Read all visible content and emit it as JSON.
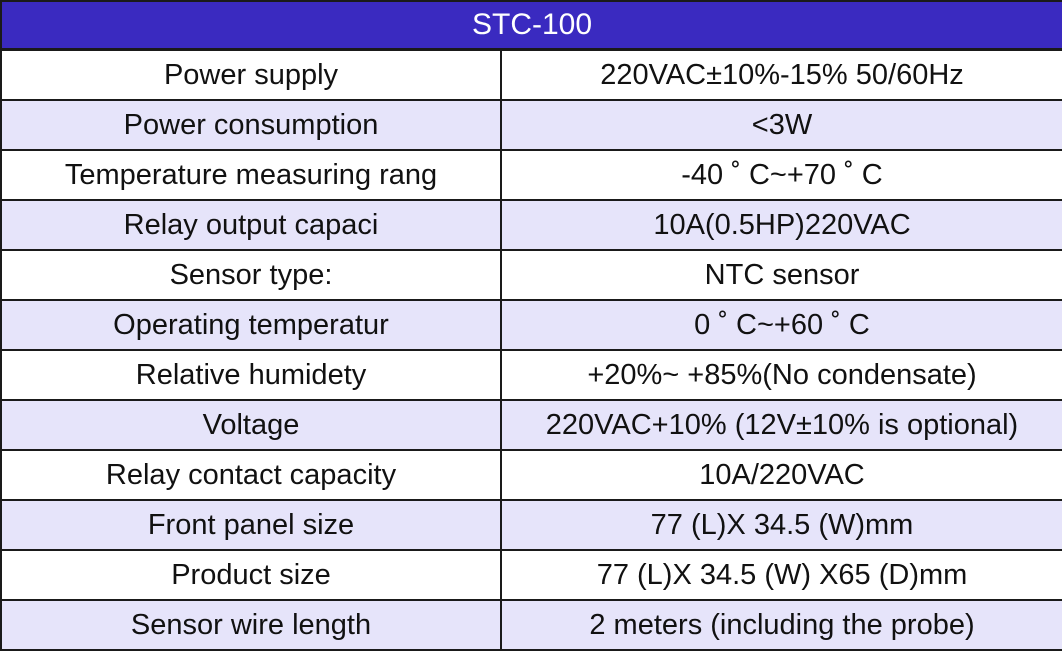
{
  "table": {
    "title": "STC-100",
    "colors": {
      "header_bg": "#3a2ac0",
      "alt_row_bg": "#e6e4fa",
      "plain_row_bg": "#ffffff"
    },
    "rows": [
      {
        "param": "Power supply",
        "value": "220VAC±10%-15% 50/60Hz"
      },
      {
        "param": "Power consumption",
        "value": "<3W"
      },
      {
        "param": "Temperature measuring rang",
        "value": "-40 ˚ C~+70 ˚ C"
      },
      {
        "param": "Relay output capaci",
        "value": "10A(0.5HP)220VAC"
      },
      {
        "param": "Sensor type:",
        "value": "NTC sensor"
      },
      {
        "param": "Operating temperatur",
        "value": "0 ˚ C~+60 ˚ C"
      },
      {
        "param": "Relative humidety",
        "value": "+20%~ +85%(No condensate)"
      },
      {
        "param": "Voltage",
        "value": "220VAC+10% (12V±10% is optional)"
      },
      {
        "param": "Relay contact capacity",
        "value": "10A/220VAC"
      },
      {
        "param": "Front panel size",
        "value": "77 (L)X 34.5 (W)mm"
      },
      {
        "param": "Product size",
        "value": "77 (L)X 34.5 (W) X65 (D)mm"
      },
      {
        "param": "Sensor wire length",
        "value": "2 meters (including the probe)"
      }
    ]
  }
}
